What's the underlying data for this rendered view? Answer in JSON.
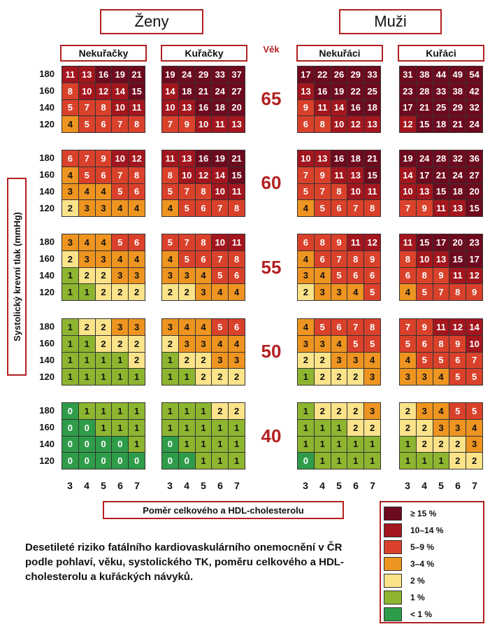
{
  "genders": [
    {
      "label": "Ženy"
    },
    {
      "label": "Muži"
    }
  ],
  "groups": [
    "Nekuřačky",
    "Kuřačky",
    "Nekuřáci",
    "Kuřáci"
  ],
  "vek_label": "Věk",
  "ylabel": "Systolický krevní tlak (mmHg)",
  "xlabel": "Poměr celkového a HDL-cholesterolu",
  "caption": "Desetileté riziko fatálního kardiovaskulárního onemocnění v ČR podle pohlaví, věku, systolického TK, poměru celkového a HDL-cholesterolu a kuřáckých návyků.",
  "legend": [
    {
      "label": "≥ 15 %",
      "color": "#6e0a1e"
    },
    {
      "label": "10–14 %",
      "color": "#a3161e"
    },
    {
      "label": "5–9 %",
      "color": "#d9412b"
    },
    {
      "label": "3–4 %",
      "color": "#ee9420"
    },
    {
      "label": "2 %",
      "color": "#fbe38a"
    },
    {
      "label": "1 %",
      "color": "#8db530"
    },
    {
      "label": "< 1 %",
      "color": "#2e9c48"
    }
  ],
  "chart_data": {
    "type": "heatmap",
    "title": "",
    "xlabel": "Poměr celkového a HDL-cholesterolu",
    "ylabel": "Systolický krevní tlak (mmHg)",
    "x_ticks": [
      3,
      4,
      5,
      6,
      7
    ],
    "y_ticks": [
      180,
      160,
      140,
      120
    ],
    "ages": [
      65,
      60,
      55,
      50,
      40
    ],
    "groups": [
      "Nekuřačky",
      "Kuřačky",
      "Nekuřáci",
      "Kuřáci"
    ],
    "values": [
      [
        [
          [
            11,
            13,
            16,
            19,
            21
          ],
          [
            8,
            10,
            12,
            14,
            15
          ],
          [
            5,
            7,
            8,
            10,
            11
          ],
          [
            4,
            5,
            6,
            7,
            8
          ]
        ],
        [
          [
            19,
            24,
            29,
            33,
            37
          ],
          [
            14,
            18,
            21,
            24,
            27
          ],
          [
            10,
            13,
            16,
            18,
            20
          ],
          [
            7,
            9,
            10,
            11,
            13
          ]
        ],
        [
          [
            17,
            22,
            26,
            29,
            33
          ],
          [
            13,
            16,
            19,
            22,
            25
          ],
          [
            9,
            11,
            14,
            16,
            18
          ],
          [
            6,
            8,
            10,
            12,
            13
          ]
        ],
        [
          [
            31,
            38,
            44,
            49,
            54
          ],
          [
            23,
            28,
            33,
            38,
            42
          ],
          [
            17,
            21,
            25,
            29,
            32
          ],
          [
            12,
            15,
            18,
            21,
            24
          ]
        ]
      ],
      [
        [
          [
            6,
            7,
            9,
            10,
            12
          ],
          [
            4,
            5,
            6,
            7,
            8
          ],
          [
            3,
            4,
            4,
            5,
            6
          ],
          [
            2,
            3,
            3,
            4,
            4
          ]
        ],
        [
          [
            11,
            13,
            16,
            19,
            21
          ],
          [
            8,
            10,
            12,
            14,
            15
          ],
          [
            5,
            7,
            8,
            10,
            11
          ],
          [
            4,
            5,
            6,
            7,
            8
          ]
        ],
        [
          [
            10,
            13,
            16,
            18,
            21
          ],
          [
            7,
            9,
            11,
            13,
            15
          ],
          [
            5,
            7,
            8,
            10,
            11
          ],
          [
            4,
            5,
            6,
            7,
            8
          ]
        ],
        [
          [
            19,
            24,
            28,
            32,
            36
          ],
          [
            14,
            17,
            21,
            24,
            27
          ],
          [
            10,
            13,
            15,
            18,
            20
          ],
          [
            7,
            9,
            11,
            13,
            15
          ]
        ]
      ],
      [
        [
          [
            3,
            4,
            4,
            5,
            6
          ],
          [
            2,
            3,
            3,
            4,
            4
          ],
          [
            1,
            2,
            2,
            3,
            3
          ],
          [
            1,
            1,
            2,
            2,
            2
          ]
        ],
        [
          [
            5,
            7,
            8,
            10,
            11
          ],
          [
            4,
            5,
            6,
            7,
            8
          ],
          [
            3,
            3,
            4,
            5,
            6
          ],
          [
            2,
            2,
            3,
            4,
            4
          ]
        ],
        [
          [
            6,
            8,
            9,
            11,
            12
          ],
          [
            4,
            6,
            7,
            8,
            9
          ],
          [
            3,
            4,
            5,
            6,
            6
          ],
          [
            2,
            3,
            3,
            4,
            5
          ]
        ],
        [
          [
            11,
            15,
            17,
            20,
            23
          ],
          [
            8,
            10,
            13,
            15,
            17
          ],
          [
            6,
            8,
            9,
            11,
            12
          ],
          [
            4,
            5,
            7,
            8,
            9
          ]
        ]
      ],
      [
        [
          [
            1,
            2,
            2,
            3,
            3
          ],
          [
            1,
            1,
            2,
            2,
            2
          ],
          [
            1,
            1,
            1,
            1,
            2
          ],
          [
            1,
            1,
            1,
            1,
            1
          ]
        ],
        [
          [
            3,
            4,
            4,
            5,
            6
          ],
          [
            2,
            3,
            3,
            4,
            4
          ],
          [
            1,
            2,
            2,
            3,
            3
          ],
          [
            1,
            1,
            2,
            2,
            2
          ]
        ],
        [
          [
            4,
            5,
            6,
            7,
            8
          ],
          [
            3,
            3,
            4,
            5,
            5
          ],
          [
            2,
            2,
            3,
            3,
            4
          ],
          [
            1,
            2,
            2,
            2,
            3
          ]
        ],
        [
          [
            7,
            9,
            11,
            12,
            14
          ],
          [
            5,
            6,
            8,
            9,
            10
          ],
          [
            4,
            5,
            5,
            6,
            7
          ],
          [
            3,
            3,
            4,
            5,
            5
          ]
        ]
      ],
      [
        [
          [
            0,
            1,
            1,
            1,
            1
          ],
          [
            0,
            0,
            1,
            1,
            1
          ],
          [
            0,
            0,
            0,
            0,
            1
          ],
          [
            0,
            0,
            0,
            0,
            0
          ]
        ],
        [
          [
            1,
            1,
            1,
            2,
            2
          ],
          [
            1,
            1,
            1,
            1,
            1
          ],
          [
            0,
            1,
            1,
            1,
            1
          ],
          [
            0,
            0,
            1,
            1,
            1
          ]
        ],
        [
          [
            1,
            2,
            2,
            2,
            3
          ],
          [
            1,
            1,
            1,
            2,
            2
          ],
          [
            1,
            1,
            1,
            1,
            1
          ],
          [
            0,
            1,
            1,
            1,
            1
          ]
        ],
        [
          [
            2,
            3,
            4,
            5,
            5
          ],
          [
            2,
            2,
            3,
            3,
            4
          ],
          [
            1,
            2,
            2,
            2,
            3
          ],
          [
            1,
            1,
            1,
            2,
            2
          ]
        ]
      ]
    ]
  }
}
